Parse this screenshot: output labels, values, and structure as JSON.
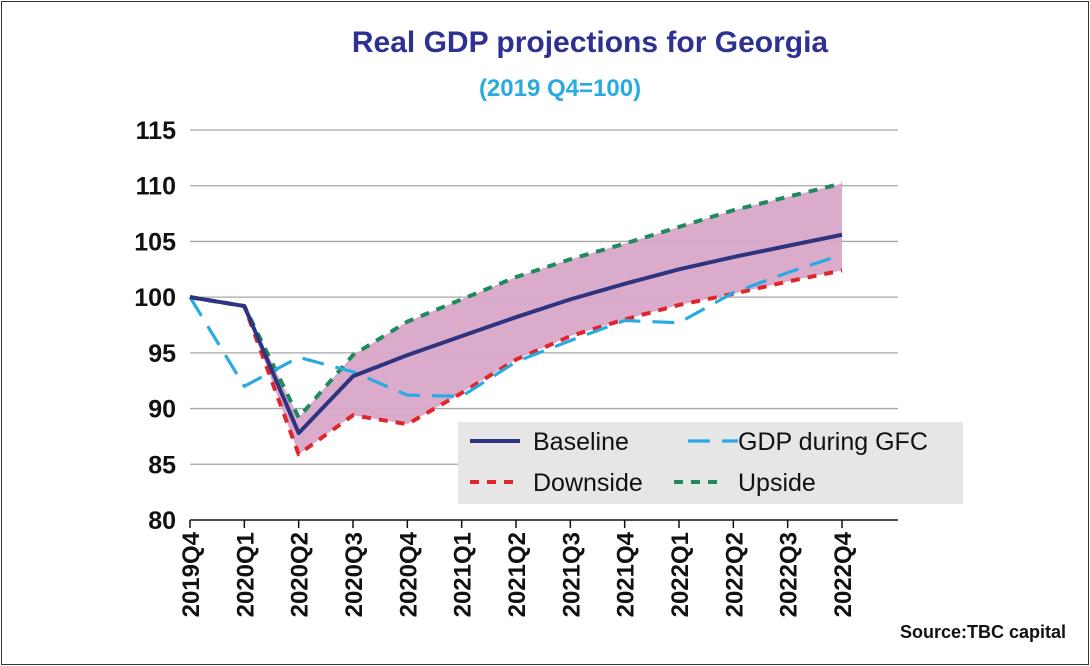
{
  "chart_data": {
    "type": "line",
    "title": "Real GDP projections for Georgia",
    "subtitle": "(2019 Q4=100)",
    "source": "Source:TBC capital",
    "categories": [
      "2019Q4",
      "2020Q1",
      "2020Q2",
      "2020Q3",
      "2020Q4",
      "2021Q1",
      "2021Q2",
      "2021Q3",
      "2021Q4",
      "2022Q1",
      "2022Q2",
      "2022Q3",
      "2022Q4"
    ],
    "ylim": [
      80,
      115
    ],
    "yticks": [
      "80",
      "85",
      "90",
      "95",
      "100",
      "105",
      "110",
      "115"
    ],
    "grid": true,
    "legend_placement": "bottom-right",
    "band": {
      "between": [
        "Downside",
        "Upside"
      ],
      "color": "#d9a7c9"
    },
    "series": [
      {
        "name": "Baseline",
        "style": "solid",
        "color": "#2e3480",
        "values": [
          100,
          99.2,
          87.8,
          92.9,
          94.8,
          96.5,
          98.2,
          99.8,
          101.2,
          102.5,
          103.6,
          104.6,
          105.6
        ]
      },
      {
        "name": "GDP during GFC",
        "style": "dash",
        "color": "#29abe2",
        "values": [
          100,
          92.0,
          94.6,
          93.3,
          91.2,
          91.1,
          94.2,
          96.1,
          97.9,
          97.7,
          100.4,
          102.2,
          103.8
        ]
      },
      {
        "name": "Downside",
        "style": "dot",
        "color": "#e0262a",
        "values": [
          100,
          99.2,
          85.9,
          89.4,
          88.6,
          91.4,
          94.4,
          96.5,
          98.0,
          99.3,
          100.3,
          101.4,
          102.4
        ]
      },
      {
        "name": "Upside",
        "style": "dot",
        "color": "#1e8a5e",
        "values": [
          100,
          99.2,
          89.2,
          94.8,
          97.8,
          99.8,
          101.8,
          103.4,
          104.8,
          106.3,
          107.8,
          109.0,
          110.2
        ]
      }
    ],
    "colors": {
      "title": "#2e3192",
      "subtitle": "#29abe2",
      "grid": "#a6a6a6",
      "legend_bg": "#e6e6e6"
    }
  }
}
